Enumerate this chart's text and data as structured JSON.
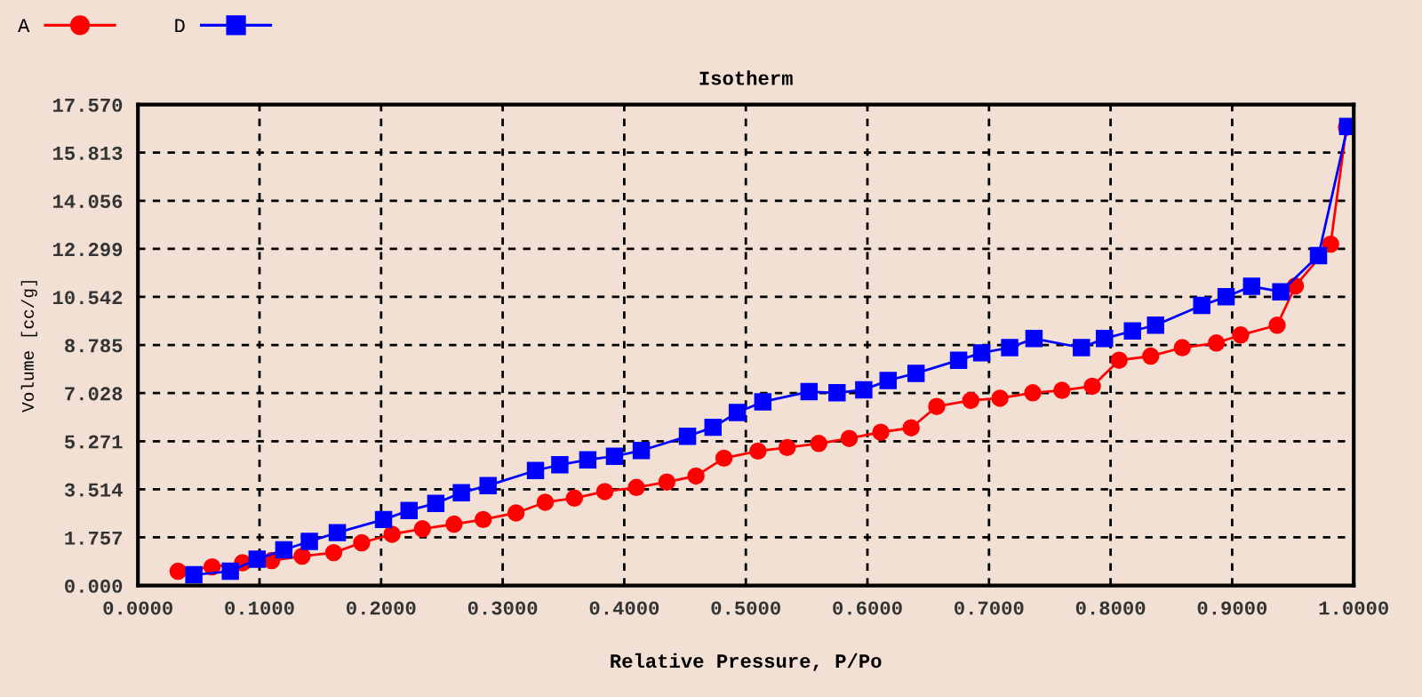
{
  "chart_data": {
    "type": "line",
    "title": "Isotherm",
    "xlabel": "Relative Pressure, P/Po",
    "ylabel": "Volume [cc/g]",
    "xlim": [
      0,
      1
    ],
    "ylim": [
      0,
      17.57
    ],
    "xticks": [
      {
        "value": 0,
        "label": "0.0000"
      },
      {
        "value": 0.1,
        "label": "0.1000"
      },
      {
        "value": 0.2,
        "label": "0.2000"
      },
      {
        "value": 0.3,
        "label": "0.3000"
      },
      {
        "value": 0.4,
        "label": "0.4000"
      },
      {
        "value": 0.5,
        "label": "0.5000"
      },
      {
        "value": 0.6,
        "label": "0.6000"
      },
      {
        "value": 0.7,
        "label": "0.7000"
      },
      {
        "value": 0.8,
        "label": "0.8000"
      },
      {
        "value": 0.9,
        "label": "0.9000"
      },
      {
        "value": 1,
        "label": "1.0000"
      }
    ],
    "yticks": [
      {
        "value": 0,
        "label": "0.000"
      },
      {
        "value": 1.757,
        "label": "1.757"
      },
      {
        "value": 3.514,
        "label": "3.514"
      },
      {
        "value": 5.271,
        "label": "5.271"
      },
      {
        "value": 7.028,
        "label": "7.028"
      },
      {
        "value": 8.785,
        "label": "8.785"
      },
      {
        "value": 10.542,
        "label": "10.542"
      },
      {
        "value": 12.299,
        "label": "12.299"
      },
      {
        "value": 14.056,
        "label": "14.056"
      },
      {
        "value": 15.813,
        "label": "15.813"
      },
      {
        "value": 17.57,
        "label": "17.570"
      }
    ],
    "grid": true,
    "legend": "top left",
    "line_style": "solid",
    "series": [
      {
        "name": "A",
        "color": "#ff0000",
        "marker": "circle",
        "x": [
          0.033,
          0.061,
          0.086,
          0.11,
          0.135,
          0.161,
          0.184,
          0.209,
          0.234,
          0.26,
          0.284,
          0.311,
          0.335,
          0.359,
          0.384,
          0.41,
          0.435,
          0.459,
          0.482,
          0.51,
          0.534,
          0.56,
          0.585,
          0.611,
          0.636,
          0.657,
          0.685,
          0.709,
          0.736,
          0.76,
          0.785,
          0.807,
          0.833,
          0.859,
          0.887,
          0.907,
          0.937,
          0.952,
          0.981,
          0.994
        ],
        "values": [
          0.52,
          0.68,
          0.83,
          0.91,
          1.07,
          1.2,
          1.56,
          1.87,
          2.07,
          2.24,
          2.41,
          2.65,
          3.04,
          3.19,
          3.43,
          3.58,
          3.78,
          4.0,
          4.65,
          4.91,
          5.04,
          5.19,
          5.37,
          5.6,
          5.76,
          6.54,
          6.76,
          6.84,
          7.04,
          7.13,
          7.28,
          8.23,
          8.38,
          8.69,
          8.86,
          9.15,
          9.51,
          10.94,
          12.47,
          16.74
        ]
      },
      {
        "name": "D",
        "color": "#0000ff",
        "marker": "square",
        "x": [
          0.046,
          0.076,
          0.098,
          0.12,
          0.141,
          0.164,
          0.202,
          0.223,
          0.245,
          0.266,
          0.288,
          0.327,
          0.347,
          0.37,
          0.392,
          0.414,
          0.452,
          0.473,
          0.493,
          0.514,
          0.552,
          0.575,
          0.597,
          0.617,
          0.64,
          0.675,
          0.694,
          0.717,
          0.737,
          0.776,
          0.795,
          0.818,
          0.837,
          0.875,
          0.895,
          0.916,
          0.94,
          0.971,
          0.995
        ],
        "values": [
          0.39,
          0.52,
          0.96,
          1.3,
          1.61,
          1.93,
          2.41,
          2.74,
          3.0,
          3.39,
          3.65,
          4.2,
          4.41,
          4.59,
          4.72,
          4.93,
          5.45,
          5.78,
          6.32,
          6.71,
          7.08,
          7.04,
          7.15,
          7.49,
          7.75,
          8.23,
          8.5,
          8.69,
          9.02,
          8.69,
          9.02,
          9.3,
          9.51,
          10.23,
          10.55,
          10.93,
          10.73,
          12.05,
          16.77
        ]
      }
    ]
  }
}
